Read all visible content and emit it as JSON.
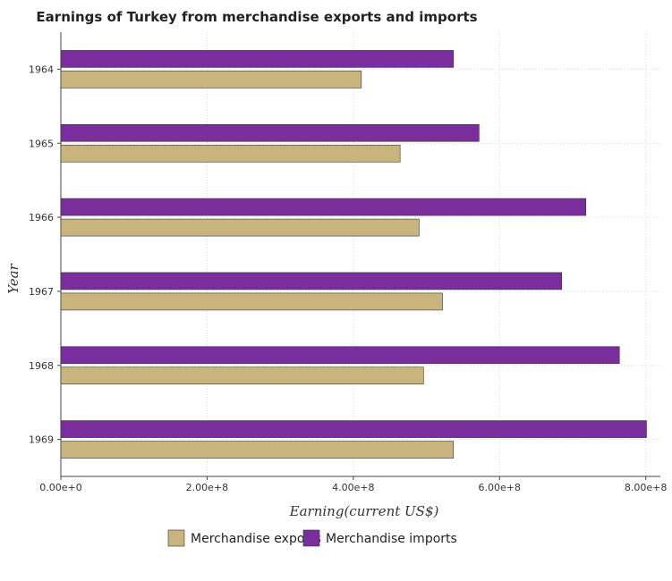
{
  "chart_data": {
    "type": "bar",
    "orientation": "horizontal",
    "title": "Earnings of Turkey from merchandise exports and imports",
    "xlabel": "Earning(current US$)",
    "ylabel": "Year",
    "categories": [
      "1964",
      "1965",
      "1966",
      "1967",
      "1968",
      "1969"
    ],
    "xlim": [
      0,
      820000000
    ],
    "xticks": [
      0,
      200000000,
      400000000,
      600000000,
      800000000
    ],
    "xtick_labels": [
      "0.00e+0",
      "2.00e+8",
      "4.00e+8",
      "6.00e+8",
      "8.00e+8"
    ],
    "grid": true,
    "legend_position": "bottom",
    "series": [
      {
        "name": "Merchandise exports",
        "color": "#c9b47e",
        "values": [
          411000000,
          464000000,
          490000000,
          522000000,
          496000000,
          537000000
        ]
      },
      {
        "name": "Merchandise imports",
        "color": "#7a2e9e",
        "values": [
          537000000,
          572000000,
          718000000,
          685000000,
          764000000,
          801000000
        ]
      }
    ]
  }
}
